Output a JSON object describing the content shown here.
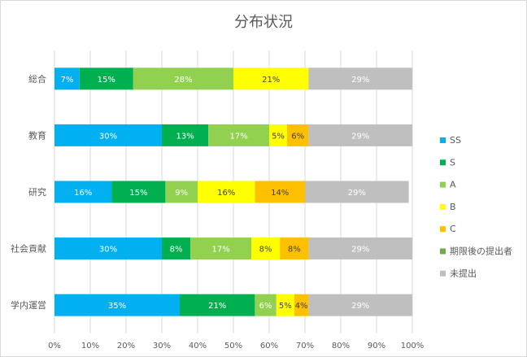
{
  "chart_data": {
    "type": "bar",
    "orientation": "horizontal",
    "stacked": "percent",
    "title": "分布状況",
    "categories": [
      "総合",
      "教育",
      "研究",
      "社会貢献",
      "学内運営"
    ],
    "series": [
      {
        "name": "SS",
        "color": "#00b0f0",
        "values": [
          7,
          30,
          16,
          30,
          35
        ],
        "labels": [
          "7%",
          "30%",
          "16%",
          "30%",
          "35%"
        ]
      },
      {
        "name": "S",
        "color": "#00b050",
        "values": [
          15,
          13,
          15,
          8,
          21
        ],
        "labels": [
          "15%",
          "13%",
          "15%",
          "8%",
          "21%"
        ]
      },
      {
        "name": "A",
        "color": "#92d050",
        "values": [
          28,
          17,
          9,
          17,
          6
        ],
        "labels": [
          "28%",
          "17%",
          "9%",
          "17%",
          "6%"
        ]
      },
      {
        "name": "B",
        "color": "#ffff00",
        "values": [
          21,
          5,
          16,
          8,
          5
        ],
        "labels": [
          "21%",
          "5%",
          "16%",
          "8%",
          "5%"
        ]
      },
      {
        "name": "C",
        "color": "#ffc000",
        "values": [
          0,
          6,
          14,
          8,
          4
        ],
        "labels": [
          "",
          "6%",
          "14%",
          "8%",
          "4%"
        ]
      },
      {
        "name": "期限後の提出者",
        "color": "#70ad47",
        "values": [
          0,
          0,
          0,
          0,
          0
        ],
        "labels": [
          "",
          "",
          "",
          "",
          ""
        ]
      },
      {
        "name": "未提出",
        "color": "#bfbfbf",
        "values": [
          29,
          29,
          29,
          29,
          29
        ],
        "labels": [
          "29%",
          "29%",
          "29%",
          "29%",
          "29%"
        ]
      }
    ],
    "xlim": [
      0,
      100
    ],
    "xticks": [
      "0%",
      "10%",
      "20%",
      "30%",
      "40%",
      "50%",
      "60%",
      "70%",
      "80%",
      "90%",
      "100%"
    ],
    "grid": "vertical",
    "legend": "right"
  }
}
